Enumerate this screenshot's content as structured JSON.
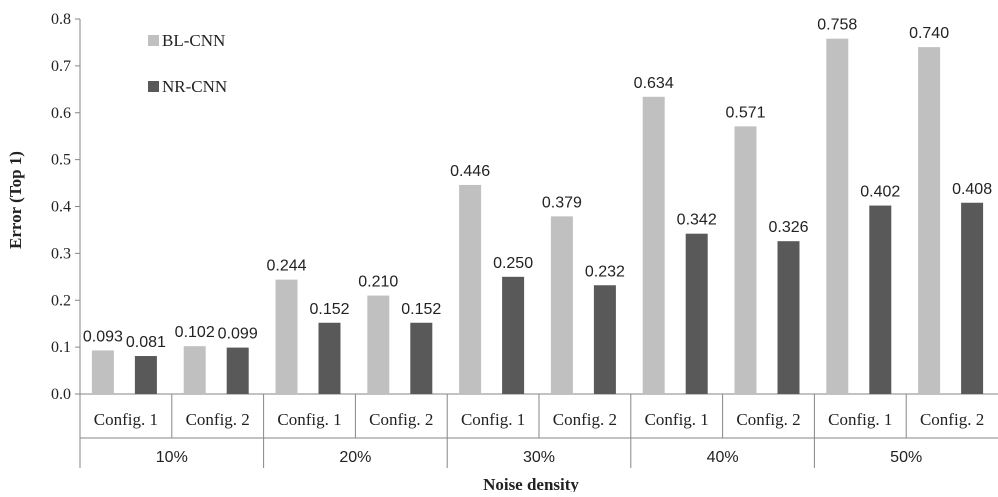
{
  "colors": {
    "bl_cnn": "#c0c0c0",
    "nr_cnn": "#595959",
    "axis": "#868686"
  },
  "chart_data": {
    "type": "bar",
    "title": "",
    "xlabel": "Noise density",
    "ylabel": "Error (Top 1)",
    "ylim": [
      0,
      0.8
    ],
    "yticks": [
      "0.0",
      "0.1",
      "0.2",
      "0.3",
      "0.4",
      "0.5",
      "0.6",
      "0.7",
      "0.8"
    ],
    "groups": [
      "10%",
      "20%",
      "30%",
      "40%",
      "50%"
    ],
    "categories": [
      "Config. 1",
      "Config. 2",
      "Config. 1",
      "Config. 2",
      "Config. 1",
      "Config. 2",
      "Config. 1",
      "Config. 2",
      "Config. 1",
      "Config. 2"
    ],
    "series": [
      {
        "name": "BL-CNN",
        "values": [
          0.093,
          0.102,
          0.244,
          0.21,
          0.446,
          0.379,
          0.634,
          0.571,
          0.758,
          0.74
        ],
        "labels": [
          "0.093",
          "0.102",
          "0.244",
          "0.210",
          "0.446",
          "0.379",
          "0.634",
          "0.571",
          "0.758",
          "0.740"
        ]
      },
      {
        "name": "NR-CNN",
        "values": [
          0.081,
          0.099,
          0.152,
          0.152,
          0.25,
          0.232,
          0.342,
          0.326,
          0.402,
          0.408
        ],
        "labels": [
          "0.081",
          "0.099",
          "0.152",
          "0.152",
          "0.250",
          "0.232",
          "0.342",
          "0.326",
          "0.402",
          "0.408"
        ]
      }
    ],
    "legend_position": "top-left",
    "grid": false
  }
}
